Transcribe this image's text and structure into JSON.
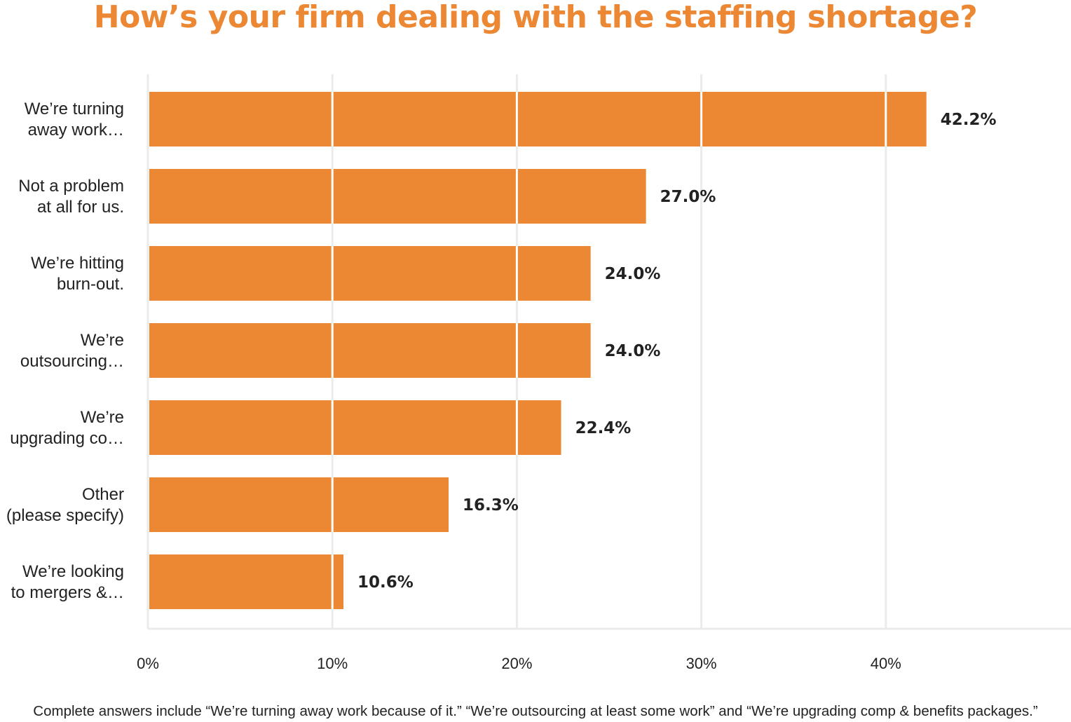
{
  "title": "How’s your firm dealing with the staffing shortage?",
  "footnote": "Complete answers include “We’re turning away work because of it.” “We’re outsourcing at least some work” and “We’re upgrading comp & benefits packages.”",
  "colors": {
    "bar": "#ec8734",
    "title": "#ec8734",
    "grid": "#ebebeb",
    "gridline_over_bar": "#ffffff",
    "value_label": "#222222",
    "tick_label": "#222222"
  },
  "chart_data": {
    "type": "bar",
    "orientation": "horizontal",
    "categories": [
      [
        "We’re turning",
        "away work…"
      ],
      [
        "Not a problem",
        "at all for us."
      ],
      [
        "We’re hitting",
        "burn-out."
      ],
      [
        "We’re",
        "outsourcing…"
      ],
      [
        "We’re",
        "upgrading co…"
      ],
      [
        "Other",
        "(please specify)"
      ],
      [
        "We’re looking",
        "to mergers &…"
      ]
    ],
    "values": [
      42.2,
      27.0,
      24.0,
      24.0,
      22.4,
      16.3,
      10.6
    ],
    "value_labels": [
      "42.2%",
      "27.0%",
      "24.0%",
      "24.0%",
      "22.4%",
      "16.3%",
      "10.6%"
    ],
    "xlim": [
      0,
      50
    ],
    "xticks": [
      0,
      10,
      20,
      30,
      40
    ],
    "xtick_labels": [
      "0%",
      "10%",
      "20%",
      "30%",
      "40%"
    ],
    "xlabel": "",
    "ylabel": "",
    "grid": "vertical",
    "legend": "none"
  }
}
